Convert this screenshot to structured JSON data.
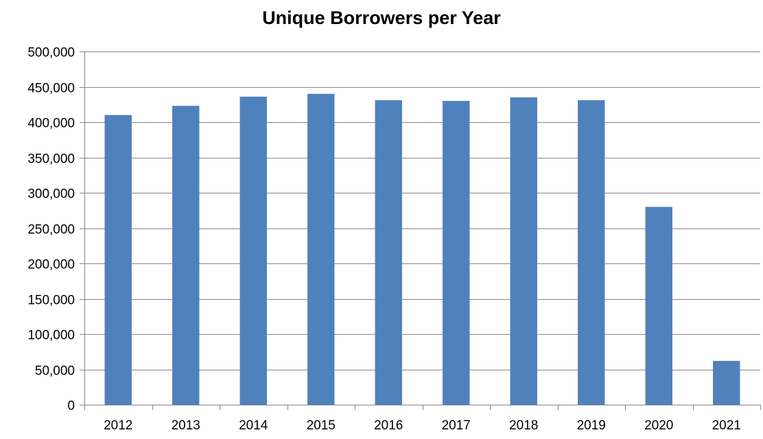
{
  "chart_data": {
    "type": "bar",
    "title": "Unique Borrowers per Year",
    "xlabel": "",
    "ylabel": "",
    "categories": [
      "2012",
      "2013",
      "2014",
      "2015",
      "2016",
      "2017",
      "2018",
      "2019",
      "2020",
      "2021"
    ],
    "values": [
      410000,
      423000,
      436000,
      440000,
      431000,
      430000,
      435000,
      431000,
      280000,
      62000
    ],
    "ylim": [
      0,
      500000
    ],
    "yticks": [
      0,
      50000,
      100000,
      150000,
      200000,
      250000,
      300000,
      350000,
      400000,
      450000,
      500000
    ],
    "ytick_labels": [
      "0",
      "50,000",
      "100,000",
      "150,000",
      "200,000",
      "250,000",
      "300,000",
      "350,000",
      "400,000",
      "450,000",
      "500,000"
    ],
    "grid": true,
    "legend": "none",
    "bar_color": "#4f81bd",
    "grid_color": "#868686"
  }
}
